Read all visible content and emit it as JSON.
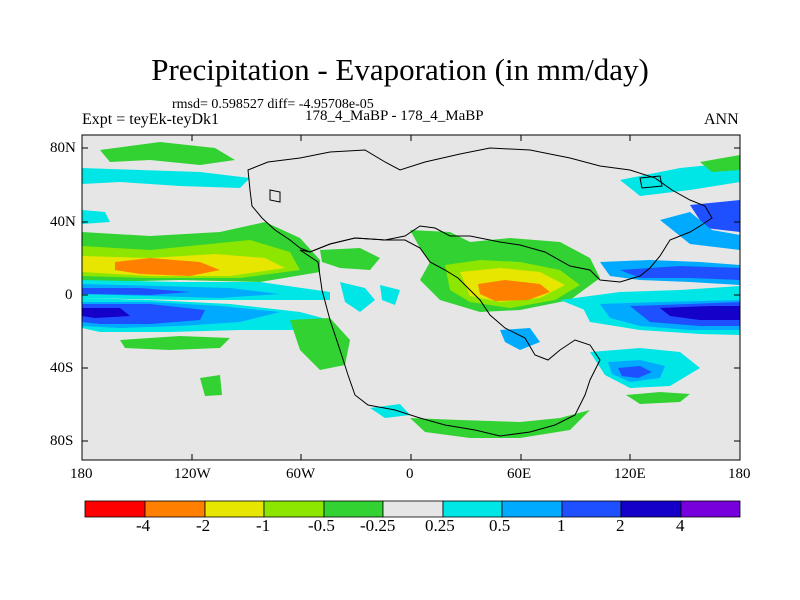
{
  "title": "Precipitation - Evaporation (in mm/day)",
  "stats": "rmsd= 0.598527 diff= -4.95708e-05",
  "experiment": "Expt = teyEk-teyDk1",
  "case_label": "178_4_MaBP - 178_4_MaBP",
  "season": "ANN",
  "lat_labels": [
    "80N",
    "40N",
    "0",
    "40S",
    "80S"
  ],
  "lon_labels": [
    "180",
    "120W",
    "60W",
    "0",
    "60E",
    "120E",
    "180"
  ],
  "colorbar": {
    "labels": [
      "-4",
      "-2",
      "-1",
      "-0.5",
      "-0.25",
      "0.25",
      "0.5",
      "1",
      "2",
      "4"
    ],
    "colors": [
      "#ff0000",
      "#ff7f00",
      "#e6e600",
      "#8ce600",
      "#32d232",
      "#e6e6e6",
      "#00e6e6",
      "#00aaff",
      "#1e50ff",
      "#1400c8",
      "#7800dc"
    ]
  },
  "colors": {
    "background": "#e6e6e6",
    "neg_small": "#32d232",
    "neg_med": "#8ce600",
    "neg_large": "#e6e600",
    "neg_xl": "#ff7f00",
    "pos_small": "#00e6e6",
    "pos_med": "#00aaff",
    "pos_large": "#1e50ff",
    "pos_xl": "#1400c8"
  }
}
